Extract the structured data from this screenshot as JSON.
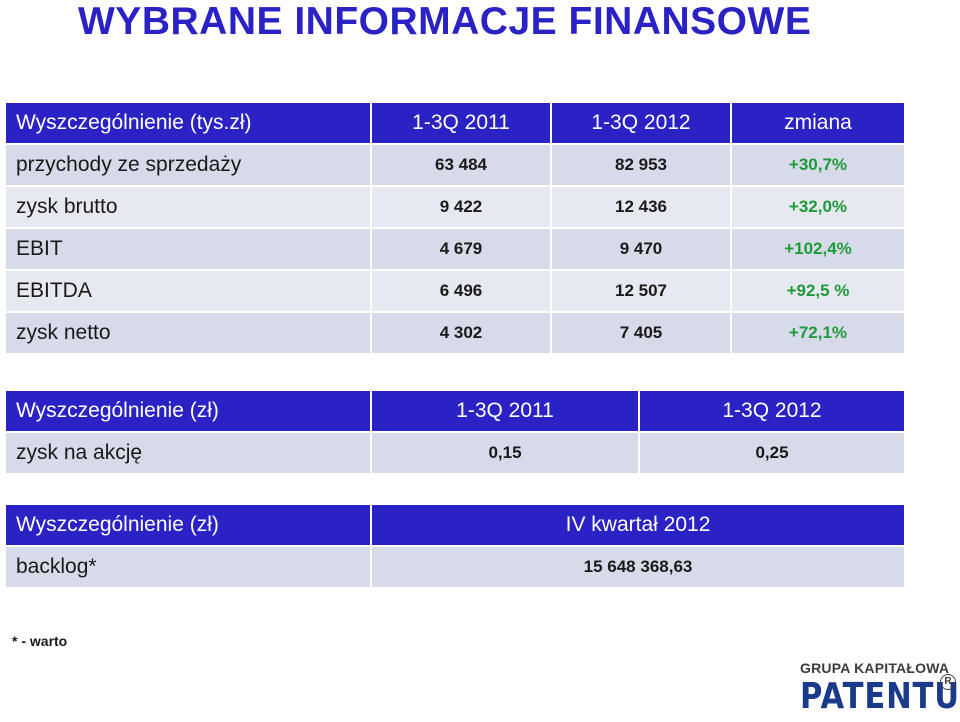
{
  "title": "WYBRANE INFORMACJE FINANSOWE",
  "table_main": {
    "headers": [
      "Wyszczególnienie (tys.zł)",
      "1-3Q 2011",
      "1-3Q 2012",
      "zmiana"
    ],
    "rows": [
      [
        "przychody ze sprzedaży",
        "63 484",
        "82 953",
        "+30,7%"
      ],
      [
        "zysk brutto",
        "9 422",
        "12 436",
        "+32,0%"
      ],
      [
        "EBIT",
        "4 679",
        "9 470",
        "+102,4%"
      ],
      [
        "EBITDA",
        "6 496",
        "12 507",
        "+92,5 %"
      ],
      [
        "zysk netto",
        "4 302",
        "7 405",
        "+72,1%"
      ]
    ]
  },
  "table_eps": {
    "headers": [
      "Wyszczególnienie (zł)",
      "1-3Q 2011",
      "1-3Q 2012"
    ],
    "rows": [
      [
        "zysk na akcję",
        "0,15",
        "0,25"
      ]
    ]
  },
  "table_backlog": {
    "headers": [
      "Wyszczególnienie (zł)",
      "IV kwartał 2012"
    ],
    "rows": [
      [
        "backlog*",
        "15 648 368,63"
      ]
    ]
  },
  "footnote": "* - warto",
  "logo": {
    "group_text": "GRUPA KAPITAŁOWA",
    "brand_text": "PATENTUS",
    "registered": "R"
  },
  "colors": {
    "header_bg": "#2a22c4",
    "title": "#2a22c4",
    "change_positive": "#1e9a3a",
    "row_light": "#e7e9f1",
    "row_dark": "#d7dbe9"
  }
}
